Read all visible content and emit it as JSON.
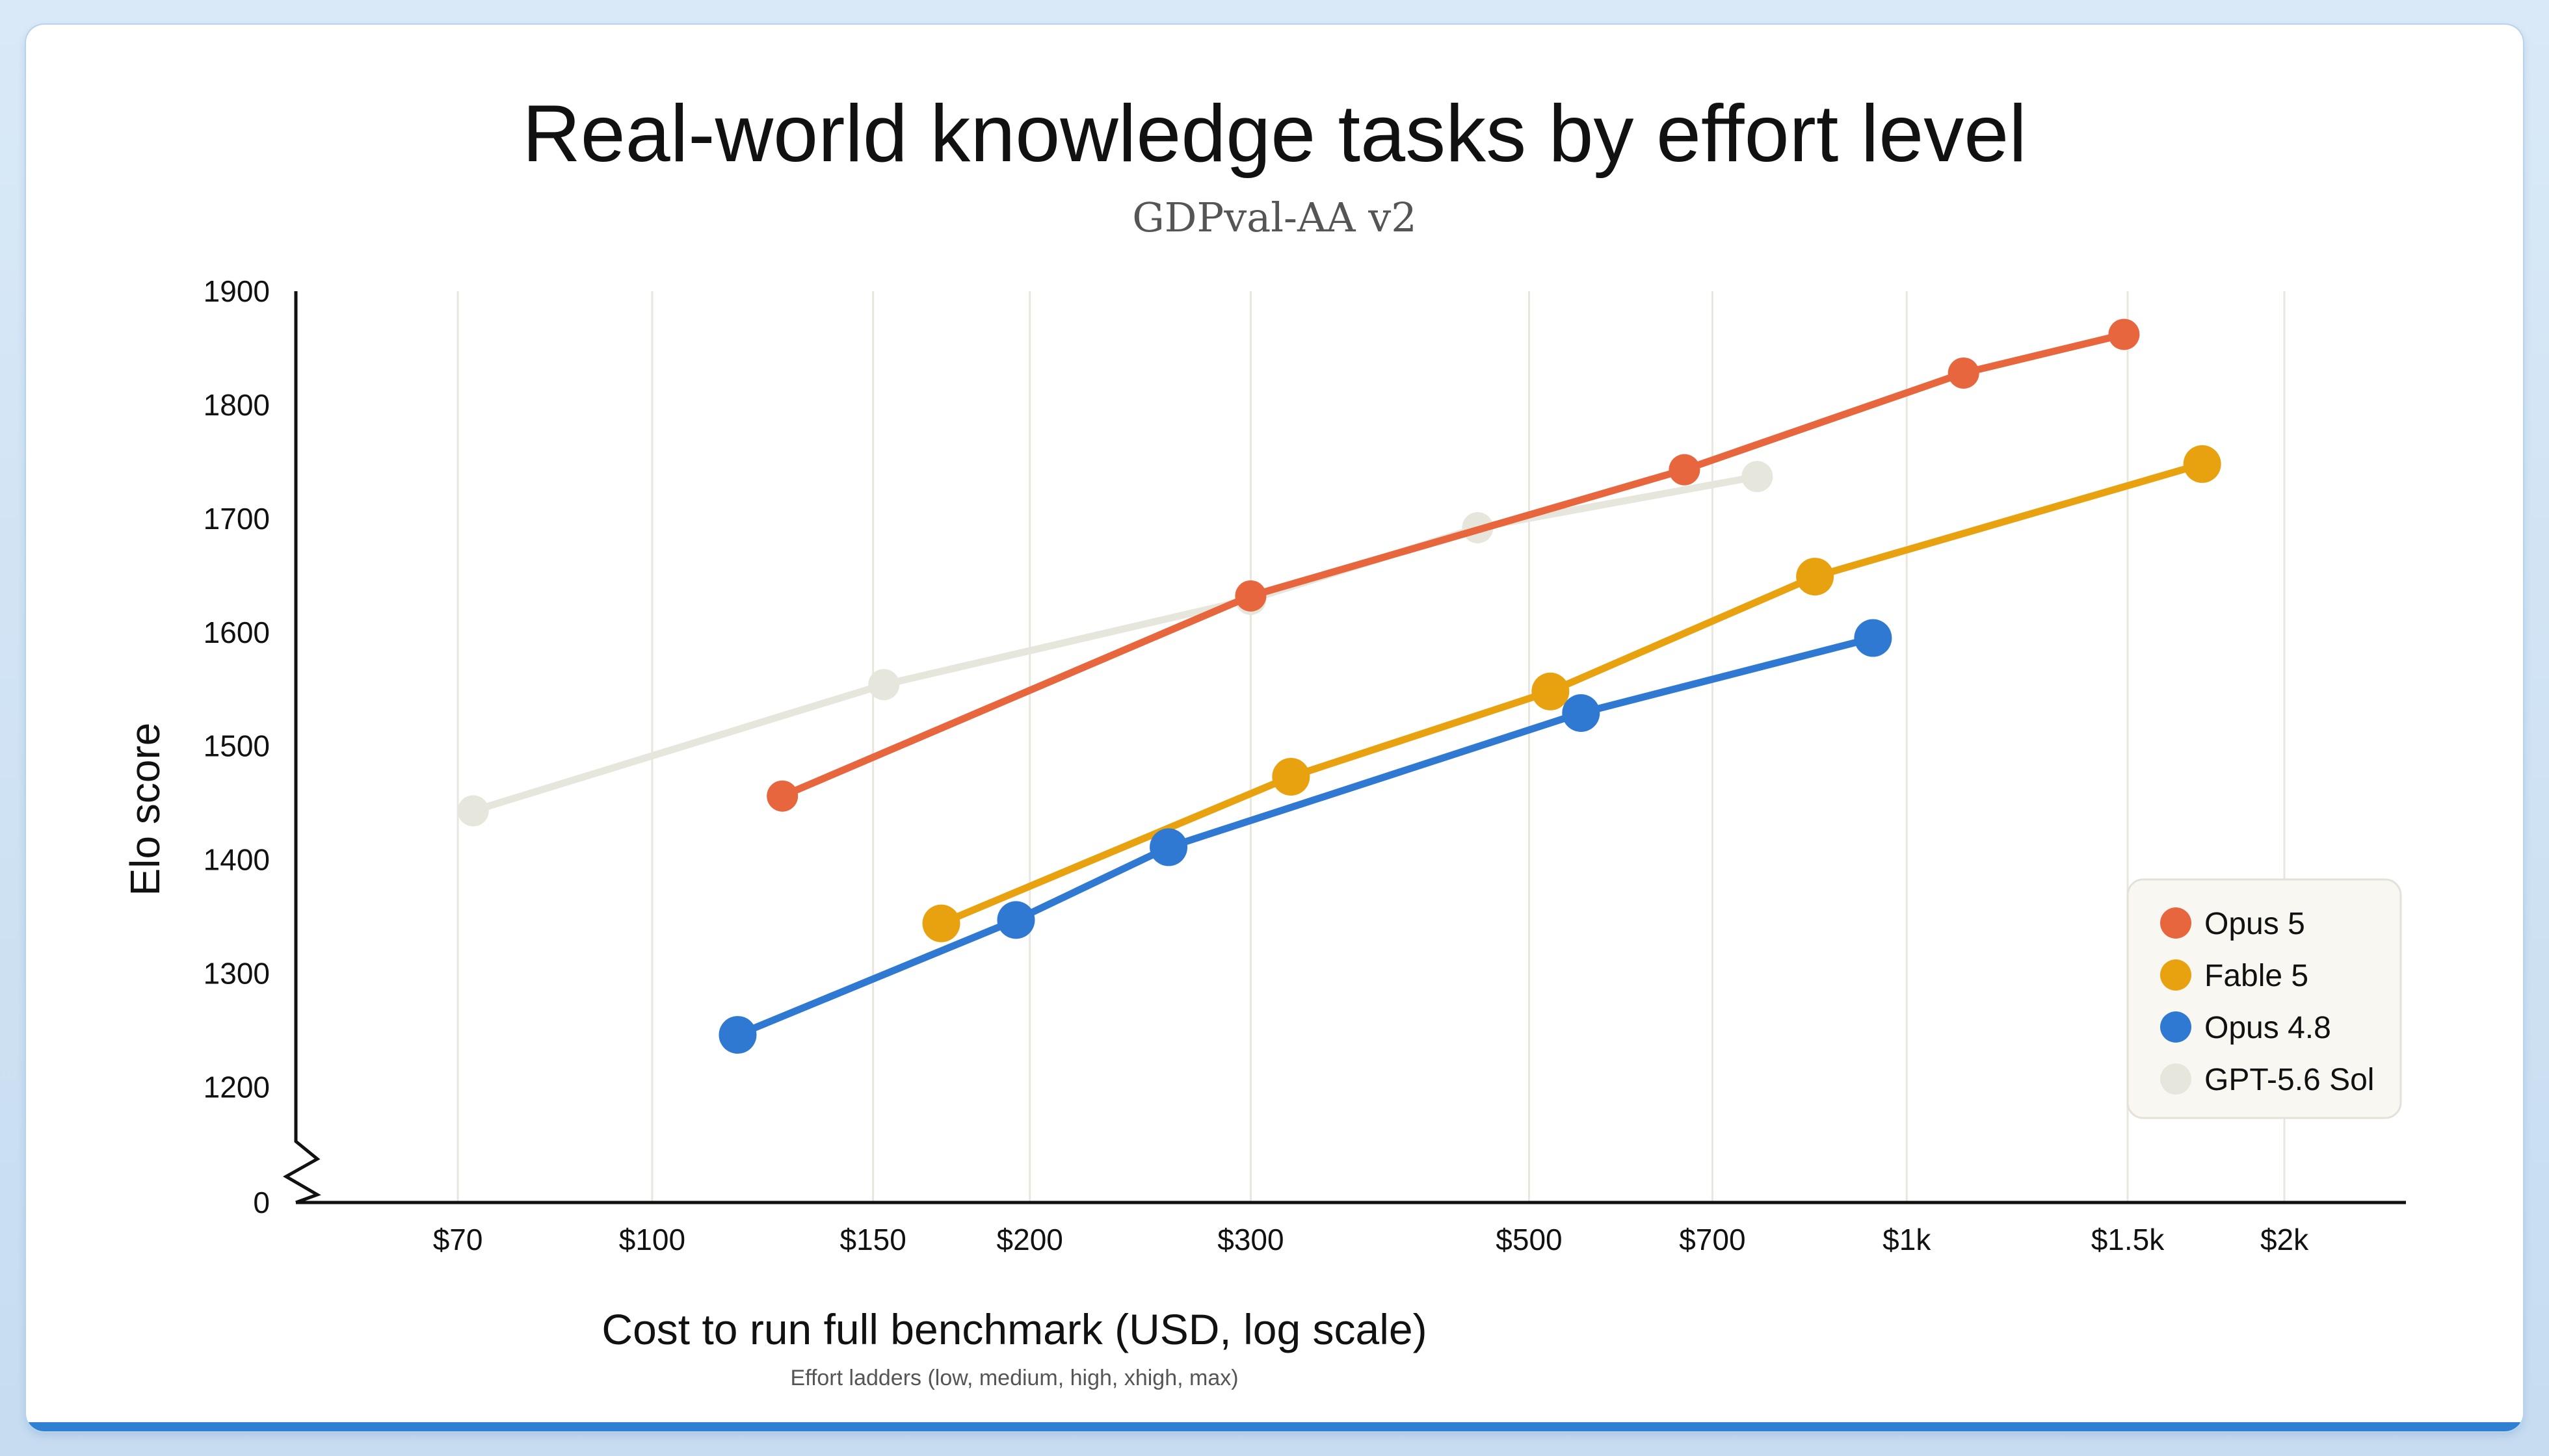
{
  "chart_data": {
    "type": "line",
    "title": "Real-world knowledge tasks by effort level",
    "subtitle": "GDPval-AA v2",
    "xlabel": "Cost to run full benchmark (USD, log scale)",
    "ylabel": "Elo score",
    "note": "Effort ladders (low, medium, high, xhigh, max)",
    "x_scale": "log",
    "xlim": [
      52,
      2500
    ],
    "ylim": [
      1130,
      1900
    ],
    "y_axis_break": true,
    "x_ticks": [
      {
        "value": 70,
        "label": "$70"
      },
      {
        "value": 100,
        "label": "$100"
      },
      {
        "value": 150,
        "label": "$150"
      },
      {
        "value": 200,
        "label": "$200"
      },
      {
        "value": 300,
        "label": "$300"
      },
      {
        "value": 500,
        "label": "$500"
      },
      {
        "value": 700,
        "label": "$700"
      },
      {
        "value": 1000,
        "label": "$1k"
      },
      {
        "value": 1500,
        "label": "$1.5k"
      },
      {
        "value": 2000,
        "label": "$2k"
      }
    ],
    "y_ticks": [
      {
        "value": 1900,
        "label": "1900"
      },
      {
        "value": 1800,
        "label": "1800"
      },
      {
        "value": 1700,
        "label": "1700"
      },
      {
        "value": 1600,
        "label": "1600"
      },
      {
        "value": 1500,
        "label": "1500"
      },
      {
        "value": 1400,
        "label": "1400"
      },
      {
        "value": 1300,
        "label": "1300"
      },
      {
        "value": 1200,
        "label": "1200"
      }
    ],
    "y_zero_label": "0",
    "grid": {
      "vertical": true,
      "horizontal": false
    },
    "legend_position": "bottom-right",
    "series": [
      {
        "name": "Opus 5",
        "color": "#e8663e",
        "x": [
          127,
          300,
          665,
          1110,
          1490
        ],
        "y": [
          1456,
          1632,
          1743,
          1828,
          1862
        ]
      },
      {
        "name": "Fable 5",
        "color": "#e9a20f",
        "x": [
          170,
          323,
          520,
          845,
          1720
        ],
        "y": [
          1344,
          1473,
          1548,
          1649,
          1748
        ]
      },
      {
        "name": "Opus 4.8",
        "color": "#2f79d3",
        "x": [
          117,
          195,
          258,
          550,
          940
        ],
        "y": [
          1246,
          1347,
          1411,
          1529,
          1595
        ]
      },
      {
        "name": "GPT-5.6 Sol",
        "color": "#e7e6dc",
        "x": [
          72,
          153,
          300,
          455,
          760
        ],
        "y": [
          1443,
          1554,
          1629,
          1692,
          1737
        ]
      }
    ]
  }
}
